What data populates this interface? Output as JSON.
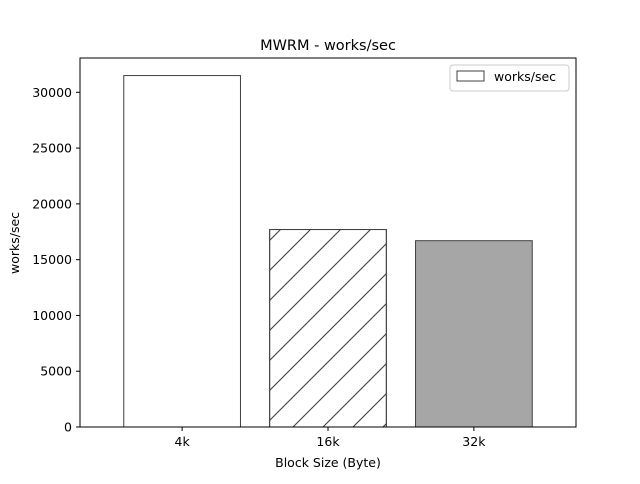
{
  "chart_data": {
    "type": "bar",
    "title": "MWRM - works/sec",
    "xlabel": "Block Size (Byte)",
    "ylabel": "works/sec",
    "categories": [
      "4k",
      "16k",
      "32k"
    ],
    "series": [
      {
        "name": "works/sec",
        "values": [
          31500,
          17700,
          16700
        ]
      }
    ],
    "bar_styles": [
      {
        "fill": "#ffffff",
        "pattern": "none"
      },
      {
        "fill": "#ffffff",
        "pattern": "diagonal-hatch"
      },
      {
        "fill": "#a6a6a6",
        "pattern": "none"
      }
    ],
    "edge_color": "#404040",
    "ylim": [
      0,
      33075
    ],
    "yticks": [
      "0",
      "5000",
      "10000",
      "15000",
      "20000",
      "25000",
      "30000"
    ],
    "legend": {
      "position": "top-right",
      "label": "works/sec"
    },
    "grid": false
  }
}
